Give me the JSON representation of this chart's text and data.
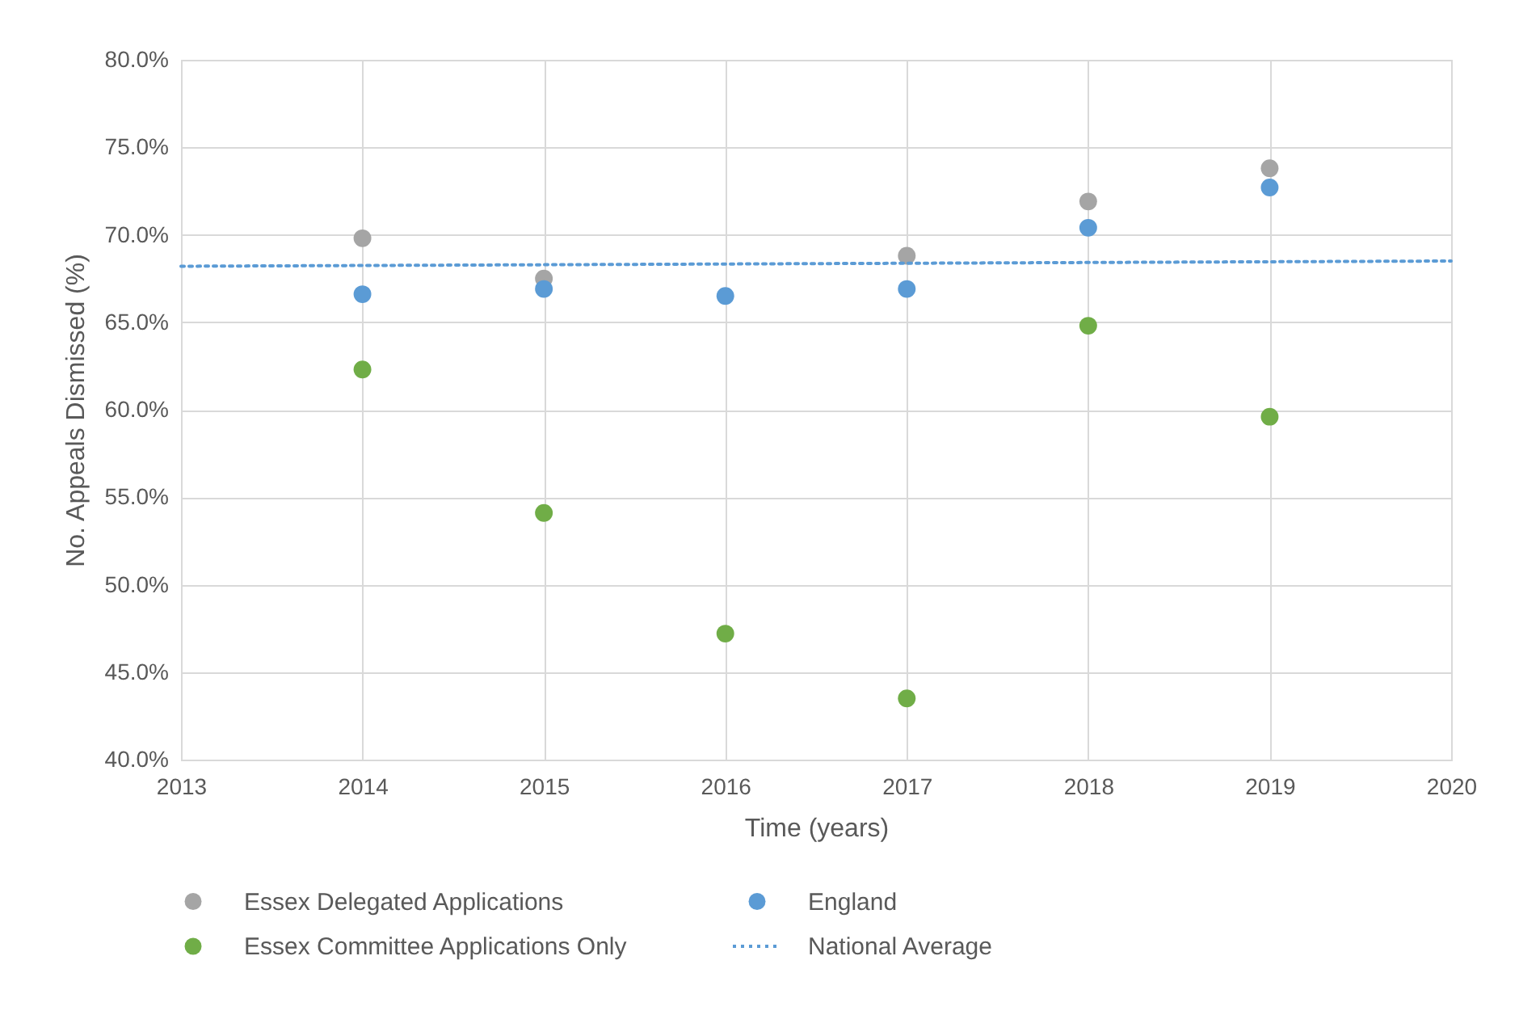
{
  "chart_data": {
    "type": "scatter",
    "xlabel": "Time (years)",
    "ylabel": "No. Appeals Dismissed (%)",
    "x": [
      2014,
      2015,
      2016,
      2017,
      2018,
      2019
    ],
    "series": [
      {
        "name": "Essex Delegated Applications",
        "color": "#a5a5a5",
        "values": [
          69.8,
          67.5,
          null,
          68.8,
          71.9,
          73.8
        ]
      },
      {
        "name": "England",
        "color": "#5b9bd5",
        "values": [
          66.6,
          66.9,
          66.5,
          66.9,
          70.4,
          72.7
        ]
      },
      {
        "name": "Essex Committee Applications Only",
        "color": "#70ad47",
        "values": [
          62.3,
          54.1,
          47.2,
          43.5,
          64.8,
          59.6
        ]
      },
      {
        "name": "National Average",
        "type": "line",
        "color": "#5b9bd5",
        "line_style": "dotted",
        "marker": "none",
        "x": [
          2013,
          2020
        ],
        "values": [
          68.2,
          68.5
        ]
      }
    ],
    "xlim": [
      2013,
      2020
    ],
    "xticks": [
      2013,
      2014,
      2015,
      2016,
      2017,
      2018,
      2019,
      2020
    ],
    "ylim": [
      40,
      80
    ],
    "yticks": [
      {
        "value": 40,
        "label": "40.0%"
      },
      {
        "value": 45,
        "label": "45.0%"
      },
      {
        "value": 50,
        "label": "50.0%"
      },
      {
        "value": 55,
        "label": "55.0%"
      },
      {
        "value": 60,
        "label": "60.0%"
      },
      {
        "value": 65,
        "label": "65.0%"
      },
      {
        "value": 70,
        "label": "70.0%"
      },
      {
        "value": 75,
        "label": "75.0%"
      },
      {
        "value": 80,
        "label": "80.0%"
      }
    ],
    "grid": true,
    "legend": "bottom",
    "marker": "circle"
  }
}
